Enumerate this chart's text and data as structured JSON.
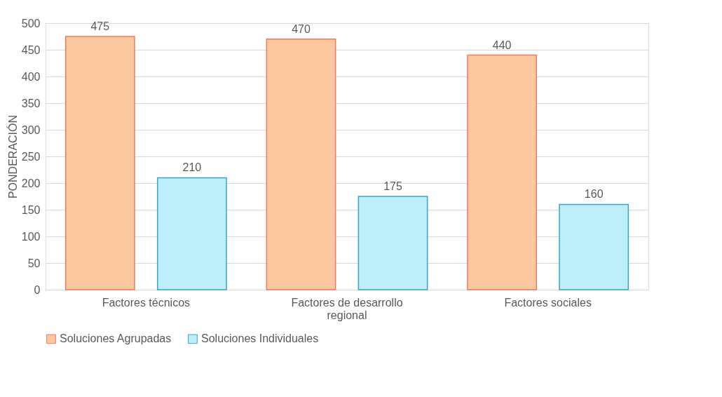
{
  "chart_data": {
    "type": "bar",
    "ylabel": "PONDERACIÓN",
    "categories": [
      "Factores técnicos",
      "Factores de desarrollo regional",
      "Factores sociales"
    ],
    "series": [
      {
        "name": "Soluciones Agrupadas",
        "color": "#fcc8a0",
        "values": [
          475,
          470,
          440
        ]
      },
      {
        "name": "Soluciones Individuales",
        "color": "#bdeef9",
        "values": [
          210,
          175,
          160
        ]
      }
    ],
    "ylim": [
      0,
      500
    ],
    "yticks": [
      0,
      50,
      100,
      150,
      200,
      250,
      300,
      350,
      400,
      450,
      500
    ],
    "grid": "y",
    "legend": "bottom",
    "data_labels": true
  }
}
